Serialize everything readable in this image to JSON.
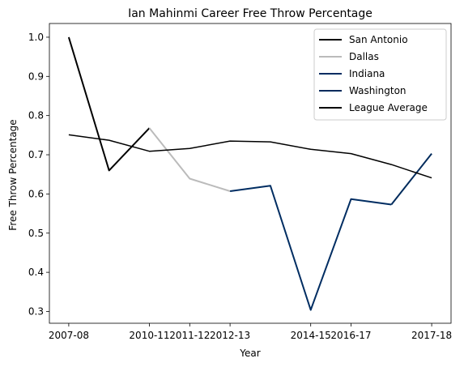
{
  "chart_data": {
    "type": "line",
    "title": "Ian Mahinmi Career Free Throw Percentage",
    "xlabel": "Year",
    "ylabel": "Free Throw Percentage",
    "x_tick_labels": [
      "2007-08",
      "2010-11",
      "2011-12",
      "2012-13",
      "2014-15",
      "2016-17",
      "2017-18"
    ],
    "x_tick_positions": [
      0,
      2,
      3,
      4,
      6,
      7,
      9
    ],
    "xlim": [
      -0.48,
      9.48
    ],
    "ylim": [
      0.27,
      1.035
    ],
    "y_ticks": [
      0.3,
      0.4,
      0.5,
      0.6,
      0.7,
      0.8,
      0.9,
      1.0
    ],
    "y_tick_labels": [
      "0.3",
      "0.4",
      "0.5",
      "0.6",
      "0.7",
      "0.8",
      "0.9",
      "1.0"
    ],
    "legend_position": "top-right",
    "series": [
      {
        "name": "San Antonio",
        "color": "#000000",
        "width": 2,
        "x": [
          0,
          1,
          2
        ],
        "y": [
          1.0,
          0.66,
          0.768
        ]
      },
      {
        "name": "Dallas",
        "color": "#bbbbbb",
        "width": 2,
        "x": [
          2,
          3,
          4
        ],
        "y": [
          0.768,
          0.639,
          0.607
        ]
      },
      {
        "name": "Indiana",
        "color": "#002d62",
        "width": 2,
        "x": [
          4,
          5,
          6,
          7,
          8
        ],
        "y": [
          0.607,
          0.621,
          0.304,
          0.587,
          0.573
        ]
      },
      {
        "name": "Washington",
        "color": "#002b5c",
        "width": 2,
        "x": [
          8,
          9
        ],
        "y": [
          0.573,
          0.703
        ]
      },
      {
        "name": "League Average",
        "color": "#000000",
        "width": 1.5,
        "x": [
          0,
          1,
          2,
          3,
          4,
          5,
          6,
          7,
          8,
          9
        ],
        "y": [
          0.751,
          0.737,
          0.709,
          0.716,
          0.735,
          0.733,
          0.714,
          0.703,
          0.675,
          0.641
        ]
      }
    ]
  }
}
